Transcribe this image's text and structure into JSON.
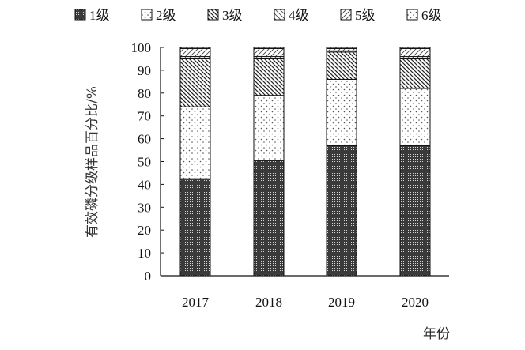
{
  "chart_data": {
    "type": "bar",
    "stacked": true,
    "xlabel": "年份",
    "ylabel": "有效磷分级样品百分比/%",
    "ylim": [
      0,
      100
    ],
    "yticks": [
      0,
      10,
      20,
      30,
      40,
      50,
      60,
      70,
      80,
      90,
      100
    ],
    "categories": [
      "2017",
      "2018",
      "2019",
      "2020"
    ],
    "legend_position": "top",
    "series": [
      {
        "name": "1级",
        "pattern": "dense-dots",
        "values": [
          42.5,
          50.5,
          57,
          57
        ]
      },
      {
        "name": "2级",
        "pattern": "sparse-dots",
        "values": [
          31.5,
          28.5,
          29,
          25
        ]
      },
      {
        "name": "3级",
        "pattern": "back-diagonal",
        "values": [
          21,
          16,
          12,
          13
        ]
      },
      {
        "name": "4级",
        "pattern": "back-diagonal-light",
        "values": [
          1,
          1,
          0.5,
          1
        ]
      },
      {
        "name": "5级",
        "pattern": "forward-diagonal",
        "values": [
          3.5,
          3.5,
          1,
          3.5
        ]
      },
      {
        "name": "6级",
        "pattern": "sparse-dots",
        "values": [
          0.5,
          0.5,
          0.5,
          0.5
        ]
      }
    ]
  }
}
